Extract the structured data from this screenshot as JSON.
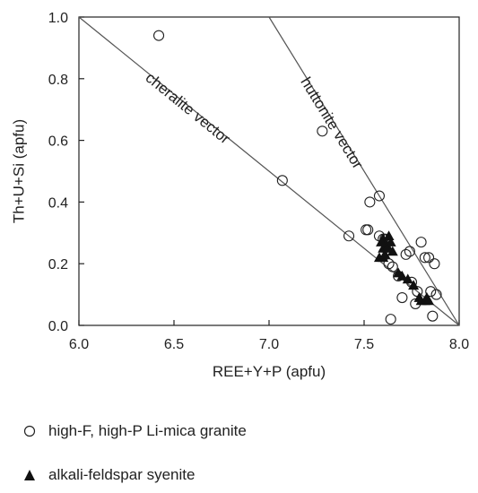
{
  "chart_data": {
    "type": "scatter",
    "xlabel": "REE+Y+P (apfu)",
    "ylabel": "Th+U+Si (apfu)",
    "xlim": [
      6.0,
      8.0
    ],
    "ylim": [
      0.0,
      1.0
    ],
    "x_ticks": [
      "6.0",
      "6.5",
      "7.0",
      "7.5",
      "8.0"
    ],
    "y_ticks": [
      "0.0",
      "0.2",
      "0.4",
      "0.6",
      "0.8",
      "1.0"
    ],
    "grid": false,
    "legend_position": "bottom",
    "reference_lines": [
      {
        "name": "cheralite vector",
        "x": [
          6.0,
          8.0
        ],
        "y": [
          1.0,
          0.0
        ]
      },
      {
        "name": "huttonite vector",
        "x": [
          7.0,
          8.0
        ],
        "y": [
          1.0,
          0.0
        ]
      }
    ],
    "series": [
      {
        "name": "high-F, high-P Li-mica granite",
        "marker": "open-circle",
        "x": [
          6.42,
          7.28,
          7.07,
          7.42,
          7.51,
          7.53,
          7.58,
          7.52,
          7.58,
          7.6,
          7.61,
          7.62,
          7.63,
          7.65,
          7.68,
          7.7,
          7.72,
          7.74,
          7.75,
          7.77,
          7.78,
          7.8,
          7.82,
          7.84,
          7.85,
          7.87,
          7.86,
          7.88,
          7.64
        ],
        "y": [
          0.94,
          0.63,
          0.47,
          0.29,
          0.31,
          0.4,
          0.42,
          0.31,
          0.29,
          0.28,
          0.28,
          0.27,
          0.2,
          0.19,
          0.16,
          0.09,
          0.23,
          0.24,
          0.14,
          0.07,
          0.11,
          0.27,
          0.22,
          0.22,
          0.11,
          0.2,
          0.03,
          0.1,
          0.02
        ]
      },
      {
        "name": "alkali-feldspar syenite",
        "marker": "filled-triangle",
        "x": [
          7.58,
          7.6,
          7.61,
          7.62,
          7.6,
          7.63,
          7.64,
          7.6,
          7.62,
          7.65,
          7.68,
          7.7,
          7.73,
          7.76,
          7.79,
          7.8,
          7.82,
          7.83,
          7.84,
          7.59
        ],
        "y": [
          0.22,
          0.22,
          0.23,
          0.26,
          0.28,
          0.29,
          0.27,
          0.25,
          0.25,
          0.24,
          0.17,
          0.16,
          0.15,
          0.13,
          0.09,
          0.08,
          0.08,
          0.09,
          0.08,
          0.27
        ]
      }
    ]
  }
}
